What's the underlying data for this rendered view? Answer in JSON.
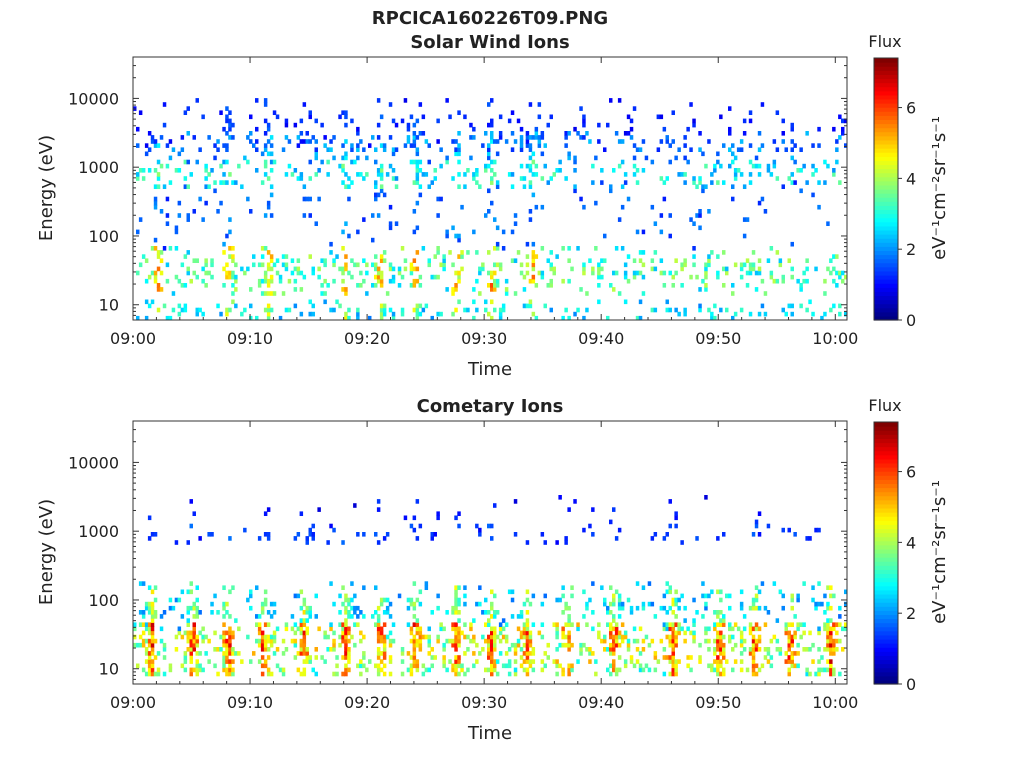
{
  "figure": {
    "filename_title": "RPCICA160226T09.PNG"
  },
  "chart_data": [
    {
      "type": "heatmap",
      "title": "Solar Wind Ions",
      "xlabel": "Time",
      "ylabel": "Energy (eV)",
      "y_scale": "log",
      "ylim": [
        6,
        40000
      ],
      "xlim_minutes": [
        0,
        61
      ],
      "x_ticks": [
        "09:00",
        "09:10",
        "09:20",
        "09:30",
        "09:40",
        "09:50",
        "10:00"
      ],
      "y_ticks": [
        "10",
        "100",
        "1000",
        "10000"
      ],
      "colorbar": {
        "label": "Flux",
        "unit": "eV⁻¹cm⁻²sr⁻¹s⁻¹",
        "range": [
          0,
          7.4
        ],
        "ticks": [
          "0",
          "2",
          "4",
          "6"
        ],
        "colormap": "jet"
      },
      "bands": [
        {
          "energy": 2000,
          "spread_decades": 0.25,
          "level": 2.2,
          "density": 0.22
        },
        {
          "energy": 800,
          "spread_decades": 0.2,
          "level": 3.2,
          "density": 0.32
        },
        {
          "energy": 4000,
          "spread_decades": 0.4,
          "level": 1.3,
          "density": 0.12
        },
        {
          "energy": 200,
          "spread_decades": 0.5,
          "level": 1.8,
          "density": 0.08
        },
        {
          "energy": 30,
          "spread_decades": 0.35,
          "level": 3.8,
          "density": 0.35
        },
        {
          "energy": 8,
          "spread_decades": 0.15,
          "level": 3.0,
          "density": 0.3
        }
      ],
      "bursts_minutes": [
        2,
        8,
        11.5,
        18,
        21,
        24,
        27.5,
        30.5,
        34
      ]
    },
    {
      "type": "heatmap",
      "title": "Cometary Ions",
      "xlabel": "Time",
      "ylabel": "Energy (eV)",
      "y_scale": "log",
      "ylim": [
        6,
        40000
      ],
      "xlim_minutes": [
        0,
        61
      ],
      "x_ticks": [
        "09:00",
        "09:10",
        "09:20",
        "09:30",
        "09:40",
        "09:50",
        "10:00"
      ],
      "y_ticks": [
        "10",
        "100",
        "1000",
        "10000"
      ],
      "colorbar": {
        "label": "Flux",
        "unit": "eV⁻¹cm⁻²sr⁻¹s⁻¹",
        "range": [
          0,
          7.4
        ],
        "ticks": [
          "0",
          "2",
          "4",
          "6"
        ],
        "colormap": "jet"
      },
      "bands": [
        {
          "energy": 900,
          "spread_decades": 0.15,
          "level": 1.4,
          "density": 0.12
        },
        {
          "energy": 2000,
          "spread_decades": 0.2,
          "level": 1.0,
          "density": 0.03
        },
        {
          "energy": 80,
          "spread_decades": 0.35,
          "level": 2.8,
          "density": 0.25
        },
        {
          "energy": 25,
          "spread_decades": 0.3,
          "level": 4.8,
          "density": 0.55
        },
        {
          "energy": 10,
          "spread_decades": 0.12,
          "level": 4.2,
          "density": 0.45
        }
      ],
      "bursts_minutes": [
        1.5,
        5,
        8,
        11,
        14.5,
        18,
        21,
        24,
        27.5,
        30.5,
        33.5,
        37,
        41,
        46,
        50,
        53,
        56,
        59.5
      ]
    }
  ]
}
